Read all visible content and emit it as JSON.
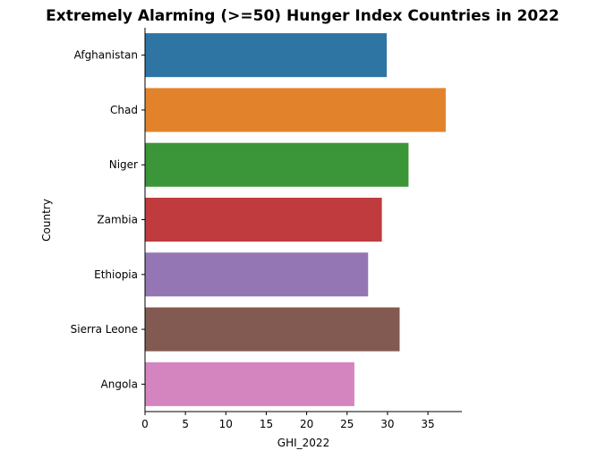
{
  "chart_data": {
    "type": "bar",
    "orientation": "horizontal",
    "title": "Extremely Alarming (>=50) Hunger Index Countries in 2022",
    "xlabel": "GHI_2022",
    "ylabel": "Country",
    "xlim": [
      0,
      39.2
    ],
    "xticks": [
      0,
      5,
      10,
      15,
      20,
      25,
      30,
      35
    ],
    "grid": false,
    "categories": [
      "Afghanistan",
      "Chad",
      "Niger",
      "Zambia",
      "Ethiopia",
      "Sierra Leone",
      "Angola"
    ],
    "values": [
      29.9,
      37.2,
      32.6,
      29.3,
      27.6,
      31.5,
      25.9
    ],
    "colors": [
      "#2e75a3",
      "#e2832c",
      "#3a9638",
      "#bf3b3e",
      "#9476b4",
      "#825a51",
      "#d485c0"
    ]
  }
}
